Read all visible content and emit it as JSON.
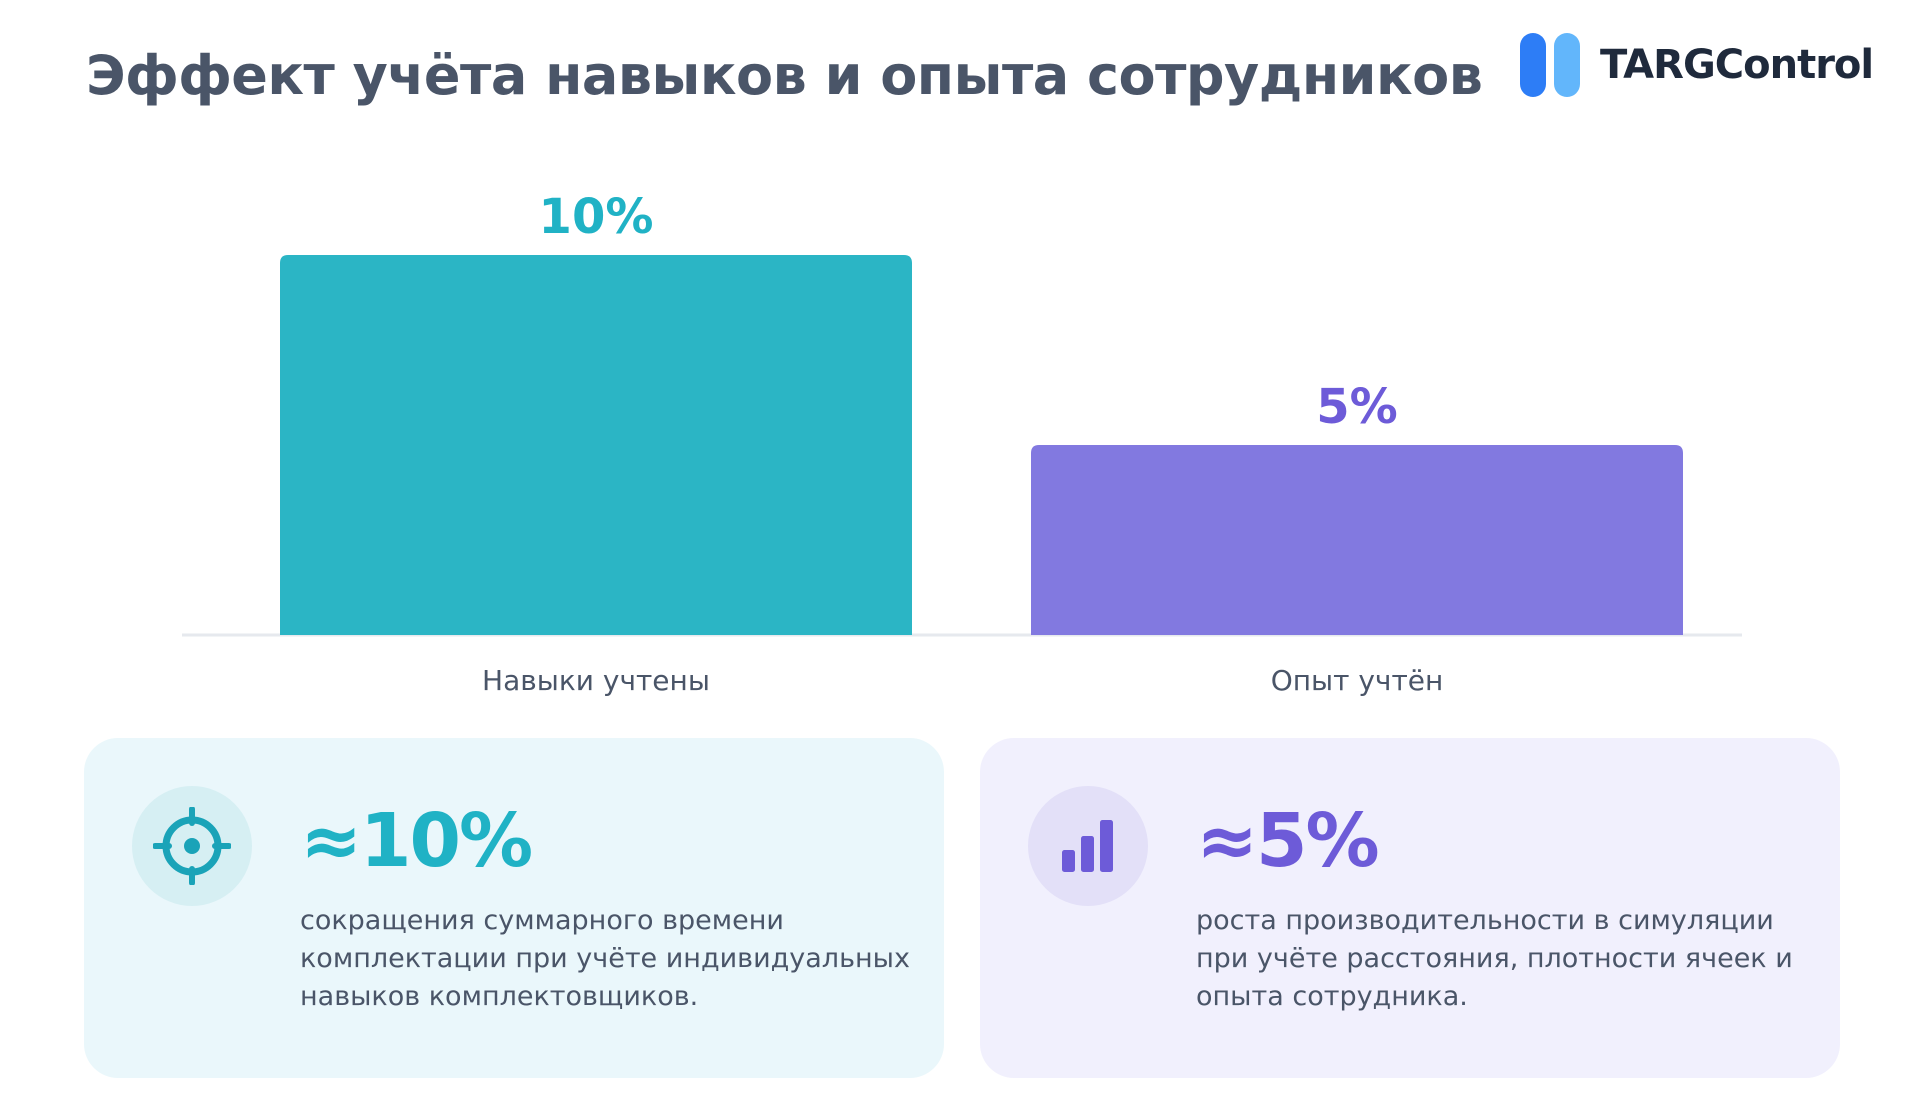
{
  "header": {
    "title": "Эффект учёта навыков и опыта сотрудников",
    "logo_text": "TARGControl",
    "logo_icon": "targcontrol-logo-icon"
  },
  "colors": {
    "teal": "#2bb5c5",
    "purple": "#8279e0",
    "teal_text": "#20b2c5",
    "purple_text": "#6d5bd8",
    "axis": "#e6e9ee",
    "label": "#4a5568"
  },
  "chart_data": {
    "type": "bar",
    "categories": [
      "Навыки учтены",
      "Опыт учтён"
    ],
    "values": [
      10,
      5
    ],
    "value_labels": [
      "10%",
      "5%"
    ],
    "title": "",
    "xlabel": "",
    "ylabel": "",
    "ylim": [
      0,
      10
    ],
    "grid": false
  },
  "cards": [
    {
      "icon": "target-icon",
      "value": "≈10%",
      "text": "сокращения суммарного времени комплектации при учёте индивидуальных навыков комплектовщиков."
    },
    {
      "icon": "bar-chart-icon",
      "value": "≈5%",
      "text": "роста производительности в симуляции при учёте расстояния, плотности ячеек и опыта сотрудника."
    }
  ]
}
